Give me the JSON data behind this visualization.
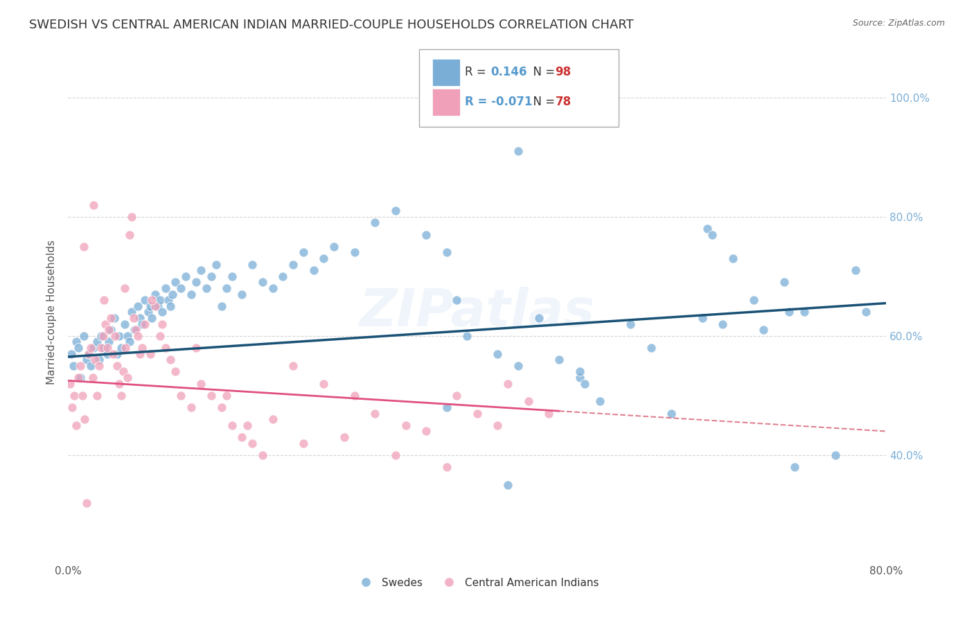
{
  "title": "SWEDISH VS CENTRAL AMERICAN INDIAN MARRIED-COUPLE HOUSEHOLDS CORRELATION CHART",
  "source": "Source: ZipAtlas.com",
  "ylabel": "Married-couple Households",
  "blue_label": "Swedes",
  "pink_label": "Central American Indians",
  "xlim": [
    0.0,
    80.0
  ],
  "ylim": [
    22.0,
    106.0
  ],
  "yticks": [
    40.0,
    60.0,
    80.0,
    100.0
  ],
  "ytick_labels": [
    "40.0%",
    "60.0%",
    "80.0%",
    "100.0%"
  ],
  "xticks": [
    0.0,
    20.0,
    40.0,
    60.0,
    80.0
  ],
  "xtick_labels": [
    "0.0%",
    "",
    "",
    "",
    "80.0%"
  ],
  "background_color": "#ffffff",
  "blue_color": "#7aaed6",
  "pink_color": "#f0a0b8",
  "blue_line_color": "#1a5276",
  "pink_line_color": "#e05080",
  "pink_dashed_color": "#e08090",
  "watermark": "ZIPatlas",
  "title_fontsize": 13,
  "blue_r": 0.146,
  "blue_n": 98,
  "pink_r": -0.071,
  "pink_n": 78,
  "blue_line_x0": 0.0,
  "blue_line_y0": 56.5,
  "blue_line_x1": 80.0,
  "blue_line_y1": 65.5,
  "pink_line_x0": 0.0,
  "pink_line_y0": 52.5,
  "pink_line_x1": 80.0,
  "pink_line_y1": 44.0,
  "pink_solid_end": 48.0,
  "blue_points_x": [
    0.3,
    0.5,
    0.8,
    1.0,
    1.2,
    1.5,
    1.8,
    2.0,
    2.2,
    2.5,
    2.8,
    3.0,
    3.2,
    3.5,
    3.8,
    4.0,
    4.2,
    4.5,
    4.8,
    5.0,
    5.2,
    5.5,
    5.8,
    6.0,
    6.2,
    6.5,
    6.8,
    7.0,
    7.2,
    7.5,
    7.8,
    8.0,
    8.2,
    8.5,
    8.8,
    9.0,
    9.2,
    9.5,
    9.8,
    10.0,
    10.2,
    10.5,
    11.0,
    11.5,
    12.0,
    12.5,
    13.0,
    13.5,
    14.0,
    14.5,
    15.0,
    15.5,
    16.0,
    17.0,
    18.0,
    19.0,
    20.0,
    21.0,
    22.0,
    23.0,
    24.0,
    25.0,
    26.0,
    28.0,
    30.0,
    32.0,
    35.0,
    37.0,
    39.0,
    42.0,
    44.0,
    46.0,
    48.0,
    50.0,
    52.0,
    55.0,
    57.0,
    59.0,
    62.0,
    64.0,
    65.0,
    67.0,
    68.0,
    70.0,
    72.0,
    75.0,
    77.0,
    78.0,
    43.0,
    44.0,
    50.0,
    50.5,
    37.0,
    38.0,
    62.5,
    63.0,
    70.5,
    71.0
  ],
  "blue_points_y": [
    57.0,
    55.0,
    59.0,
    58.0,
    53.0,
    60.0,
    56.0,
    57.0,
    55.0,
    58.0,
    59.0,
    56.0,
    60.0,
    58.0,
    57.0,
    59.0,
    61.0,
    63.0,
    57.0,
    60.0,
    58.0,
    62.0,
    60.0,
    59.0,
    64.0,
    61.0,
    65.0,
    63.0,
    62.0,
    66.0,
    64.0,
    65.0,
    63.0,
    67.0,
    65.0,
    66.0,
    64.0,
    68.0,
    66.0,
    65.0,
    67.0,
    69.0,
    68.0,
    70.0,
    67.0,
    69.0,
    71.0,
    68.0,
    70.0,
    72.0,
    65.0,
    68.0,
    70.0,
    67.0,
    72.0,
    69.0,
    68.0,
    70.0,
    72.0,
    74.0,
    71.0,
    73.0,
    75.0,
    74.0,
    79.0,
    81.0,
    77.0,
    74.0,
    60.0,
    57.0,
    55.0,
    63.0,
    56.0,
    53.0,
    49.0,
    62.0,
    58.0,
    47.0,
    63.0,
    62.0,
    73.0,
    66.0,
    61.0,
    69.0,
    64.0,
    40.0,
    71.0,
    64.0,
    35.0,
    91.0,
    54.0,
    52.0,
    48.0,
    66.0,
    78.0,
    77.0,
    64.0,
    38.0
  ],
  "pink_points_x": [
    0.2,
    0.4,
    0.6,
    0.8,
    1.0,
    1.2,
    1.4,
    1.6,
    1.8,
    2.0,
    2.2,
    2.4,
    2.6,
    2.8,
    3.0,
    3.2,
    3.4,
    3.6,
    3.8,
    4.0,
    4.2,
    4.4,
    4.6,
    4.8,
    5.0,
    5.2,
    5.4,
    5.6,
    5.8,
    6.0,
    6.2,
    6.4,
    6.6,
    6.8,
    7.0,
    7.5,
    8.0,
    8.5,
    9.0,
    9.5,
    10.0,
    10.5,
    11.0,
    12.0,
    13.0,
    14.0,
    15.0,
    16.0,
    17.0,
    18.0,
    20.0,
    22.0,
    25.0,
    28.0,
    30.0,
    33.0,
    35.0,
    38.0,
    40.0,
    43.0,
    45.0,
    47.0,
    1.5,
    2.5,
    3.5,
    5.5,
    7.2,
    8.2,
    9.2,
    12.5,
    15.5,
    17.5,
    19.0,
    23.0,
    27.0,
    32.0,
    37.0,
    42.0
  ],
  "pink_points_y": [
    52.0,
    48.0,
    50.0,
    45.0,
    53.0,
    55.0,
    50.0,
    46.0,
    32.0,
    57.0,
    58.0,
    53.0,
    56.0,
    50.0,
    55.0,
    58.0,
    60.0,
    62.0,
    58.0,
    61.0,
    63.0,
    57.0,
    60.0,
    55.0,
    52.0,
    50.0,
    54.0,
    58.0,
    53.0,
    77.0,
    80.0,
    63.0,
    61.0,
    60.0,
    57.0,
    62.0,
    57.0,
    65.0,
    60.0,
    58.0,
    56.0,
    54.0,
    50.0,
    48.0,
    52.0,
    50.0,
    48.0,
    45.0,
    43.0,
    42.0,
    46.0,
    55.0,
    52.0,
    50.0,
    47.0,
    45.0,
    44.0,
    50.0,
    47.0,
    52.0,
    49.0,
    47.0,
    75.0,
    82.0,
    66.0,
    68.0,
    58.0,
    66.0,
    62.0,
    58.0,
    50.0,
    45.0,
    40.0,
    42.0,
    43.0,
    40.0,
    38.0,
    45.0
  ]
}
